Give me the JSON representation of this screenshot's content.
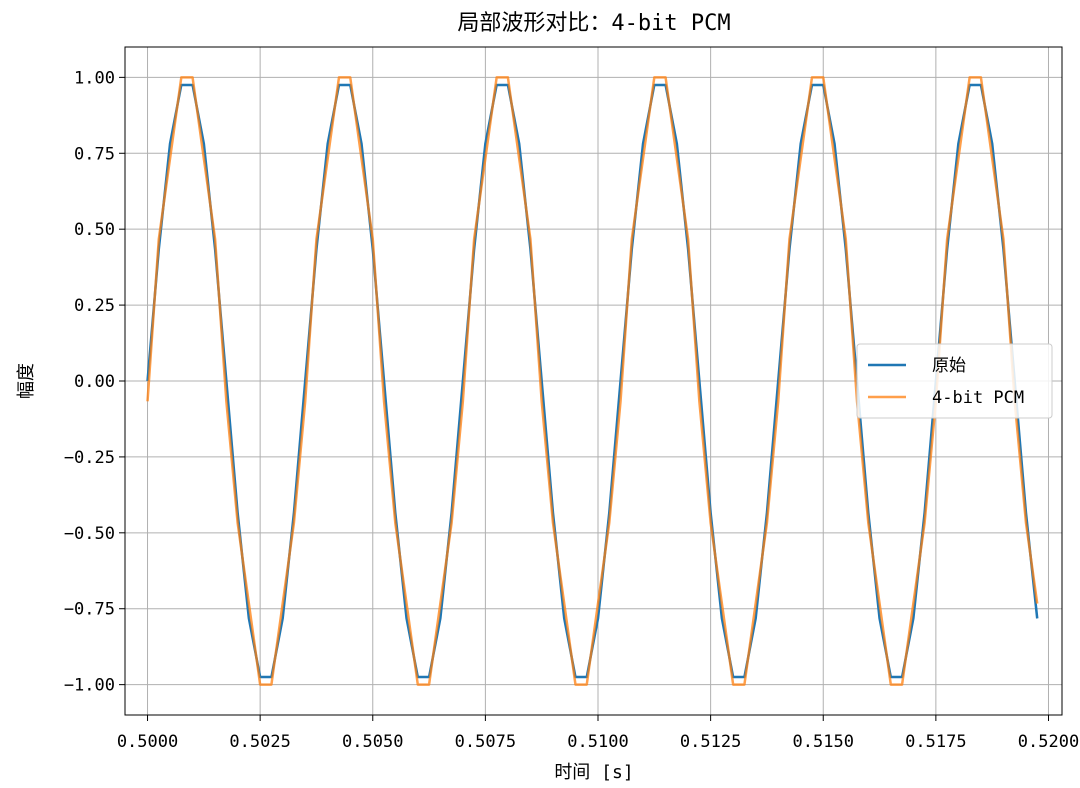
{
  "chart_data": {
    "type": "line",
    "title": "局部波形对比：4-bit PCM",
    "xlabel": "时间 [s]",
    "ylabel": "幅度",
    "xlim": [
      0.4995,
      0.5203
    ],
    "ylim": [
      -1.1,
      1.1
    ],
    "xticks": [
      0.5,
      0.5025,
      0.505,
      0.5075,
      0.51,
      0.5125,
      0.515,
      0.5175,
      0.52
    ],
    "xtick_labels": [
      "0.5000",
      "0.5025",
      "0.5050",
      "0.5075",
      "0.5100",
      "0.5125",
      "0.5150",
      "0.5175",
      "0.5200"
    ],
    "yticks": [
      1.0,
      0.75,
      0.5,
      0.25,
      0.0,
      -0.25,
      -0.5,
      -0.75,
      -1.0
    ],
    "ytick_labels": [
      "1.00",
      "0.75",
      "0.50",
      "0.25",
      "0.00",
      "−0.25",
      "−0.50",
      "−0.75",
      "−1.00"
    ],
    "grid": true,
    "legend_position": "right",
    "series": [
      {
        "name": "原始",
        "color": "#1f77b4",
        "x": [
          0.5,
          0.50025,
          0.5005,
          0.50075,
          0.501,
          0.50125,
          0.5015,
          0.50175,
          0.502,
          0.50225,
          0.5025,
          0.50275,
          0.503,
          0.50325,
          0.5035,
          0.50375,
          0.504,
          0.50425,
          0.5045,
          0.50475,
          0.505,
          0.50525,
          0.5055,
          0.50575,
          0.506,
          0.50625,
          0.5065,
          0.50675,
          0.507,
          0.50725,
          0.5075,
          0.50775,
          0.508,
          0.50825,
          0.5085,
          0.50875,
          0.509,
          0.50925,
          0.5095,
          0.50975,
          0.51,
          0.51025,
          0.5105,
          0.51075,
          0.511,
          0.51125,
          0.5115,
          0.51175,
          0.512,
          0.51225,
          0.5125,
          0.51275,
          0.513,
          0.51325,
          0.5135,
          0.51375,
          0.514,
          0.51425,
          0.5145,
          0.51475,
          0.515,
          0.51525,
          0.5155,
          0.51575,
          0.516,
          0.51625,
          0.5165,
          0.51675,
          0.517,
          0.51725,
          0.5175,
          0.51775,
          0.518,
          0.51825,
          0.5185,
          0.51875,
          0.519,
          0.51925,
          0.5195,
          0.51975
        ],
        "y": [
          0.0,
          0.434,
          0.782,
          0.975,
          0.975,
          0.782,
          0.434,
          0.0,
          -0.434,
          -0.782,
          -0.975,
          -0.975,
          -0.782,
          -0.434,
          0.0,
          0.434,
          0.782,
          0.975,
          0.975,
          0.782,
          0.434,
          0.0,
          -0.434,
          -0.782,
          -0.975,
          -0.975,
          -0.782,
          -0.434,
          0.0,
          0.434,
          0.782,
          0.975,
          0.975,
          0.782,
          0.434,
          0.0,
          -0.434,
          -0.782,
          -0.975,
          -0.975,
          -0.782,
          -0.434,
          0.0,
          0.434,
          0.782,
          0.975,
          0.975,
          0.782,
          0.434,
          0.0,
          -0.434,
          -0.782,
          -0.975,
          -0.975,
          -0.782,
          -0.434,
          0.0,
          0.434,
          0.782,
          0.975,
          0.975,
          0.782,
          0.434,
          0.0,
          -0.434,
          -0.782,
          -0.975,
          -0.975,
          -0.782,
          -0.434,
          0.0,
          0.434,
          0.782,
          0.975,
          0.975,
          0.782,
          0.434,
          0.0,
          -0.434,
          -0.782
        ]
      },
      {
        "name": "4-bit PCM",
        "color": "#ff7f0e",
        "x": [
          0.5,
          0.50025,
          0.5005,
          0.50075,
          0.501,
          0.50125,
          0.5015,
          0.50175,
          0.502,
          0.50225,
          0.5025,
          0.50275,
          0.503,
          0.50325,
          0.5035,
          0.50375,
          0.504,
          0.50425,
          0.5045,
          0.50475,
          0.505,
          0.50525,
          0.5055,
          0.50575,
          0.506,
          0.50625,
          0.5065,
          0.50675,
          0.507,
          0.50725,
          0.5075,
          0.50775,
          0.508,
          0.50825,
          0.5085,
          0.50875,
          0.509,
          0.50925,
          0.5095,
          0.50975,
          0.51,
          0.51025,
          0.5105,
          0.51075,
          0.511,
          0.51125,
          0.5115,
          0.51175,
          0.512,
          0.51225,
          0.5125,
          0.51275,
          0.513,
          0.51325,
          0.5135,
          0.51375,
          0.514,
          0.51425,
          0.5145,
          0.51475,
          0.515,
          0.51525,
          0.5155,
          0.51575,
          0.516,
          0.51625,
          0.5165,
          0.51675,
          0.517,
          0.51725,
          0.5175,
          0.51775,
          0.518,
          0.51825,
          0.5185,
          0.51875,
          0.519,
          0.51925,
          0.5195,
          0.51975
        ],
        "y": [
          -0.067,
          0.467,
          0.733,
          1.0,
          1.0,
          0.733,
          0.467,
          -0.067,
          -0.467,
          -0.733,
          -1.0,
          -1.0,
          -0.733,
          -0.467,
          -0.067,
          0.467,
          0.733,
          1.0,
          1.0,
          0.733,
          0.467,
          -0.067,
          -0.467,
          -0.733,
          -1.0,
          -1.0,
          -0.733,
          -0.467,
          -0.067,
          0.467,
          0.733,
          1.0,
          1.0,
          0.733,
          0.467,
          -0.067,
          -0.467,
          -0.733,
          -1.0,
          -1.0,
          -0.733,
          -0.467,
          -0.067,
          0.467,
          0.733,
          1.0,
          1.0,
          0.733,
          0.467,
          -0.067,
          -0.467,
          -0.733,
          -1.0,
          -1.0,
          -0.733,
          -0.467,
          -0.067,
          0.467,
          0.733,
          1.0,
          1.0,
          0.733,
          0.467,
          -0.067,
          -0.467,
          -0.733,
          -1.0,
          -1.0,
          -0.733,
          -0.467,
          -0.067,
          0.467,
          0.733,
          1.0,
          1.0,
          0.733,
          0.467,
          -0.067,
          -0.467,
          -0.733
        ]
      }
    ]
  }
}
